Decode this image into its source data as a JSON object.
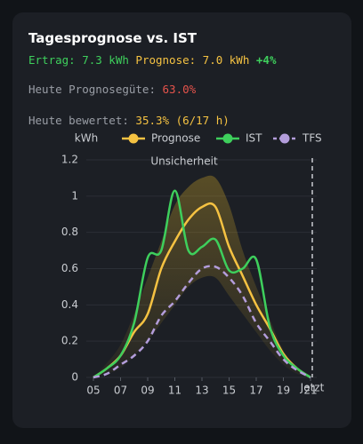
{
  "header": {
    "title": "Tagesprognose vs. IST",
    "ertrag": "Ertrag: 7.3 kWh",
    "prognose": "Prognose: 7.0 kWh",
    "delta": "+4%",
    "guete_label": "Heute Prognosegüte:",
    "guete_value": "63.0%",
    "bewertet_label": "Heute bewertet:",
    "bewertet_value": "35.3% (6/17 h)"
  },
  "chart_data": {
    "type": "line",
    "y_label": "kWh",
    "x": [
      5,
      6,
      7,
      8,
      9,
      10,
      11,
      12,
      13,
      14,
      15,
      16,
      17,
      18,
      19,
      20,
      21
    ],
    "xlim": [
      5,
      21
    ],
    "xticks": [
      {
        "value": 5,
        "label": "05"
      },
      {
        "value": 7,
        "label": "07"
      },
      {
        "value": 9,
        "label": "09"
      },
      11,
      13,
      15,
      17,
      19,
      21
    ],
    "ylim": [
      0,
      1.2
    ],
    "yticks": [
      0,
      0.2,
      0.4,
      0.6,
      0.8,
      1,
      1.2
    ],
    "grid": true,
    "series": [
      {
        "name": "Prognose",
        "color": "#f5c242",
        "dashed": false,
        "values": [
          0,
          0.05,
          0.12,
          0.25,
          0.35,
          0.6,
          0.75,
          0.87,
          0.94,
          0.94,
          0.72,
          0.56,
          0.4,
          0.27,
          0.13,
          0.05,
          0
        ]
      },
      {
        "name": "IST",
        "color": "#3ecf5c",
        "dashed": false,
        "values": [
          0,
          0.05,
          0.12,
          0.3,
          0.66,
          0.7,
          1.03,
          0.7,
          0.72,
          0.76,
          0.59,
          0.6,
          0.65,
          0.28,
          0.12,
          0.05,
          0
        ]
      },
      {
        "name": "TFS",
        "color": "#b39ddb",
        "dashed": true,
        "values": [
          0,
          0.02,
          0.07,
          0.12,
          0.2,
          0.34,
          0.42,
          0.52,
          0.6,
          0.61,
          0.55,
          0.45,
          0.3,
          0.2,
          0.1,
          0.04,
          0
        ]
      }
    ],
    "band": {
      "label": "Unsicherheit",
      "color": "#c9a227",
      "high": [
        0,
        0.08,
        0.18,
        0.35,
        0.55,
        0.75,
        0.95,
        1.05,
        1.1,
        1.1,
        0.95,
        0.7,
        0.5,
        0.32,
        0.15,
        0.06,
        0
      ],
      "low": [
        0,
        0.02,
        0.05,
        0.12,
        0.2,
        0.3,
        0.4,
        0.5,
        0.55,
        0.55,
        0.45,
        0.35,
        0.25,
        0.15,
        0.07,
        0.02,
        0
      ]
    },
    "marker": {
      "x": 21,
      "label": "Jetzt"
    }
  }
}
